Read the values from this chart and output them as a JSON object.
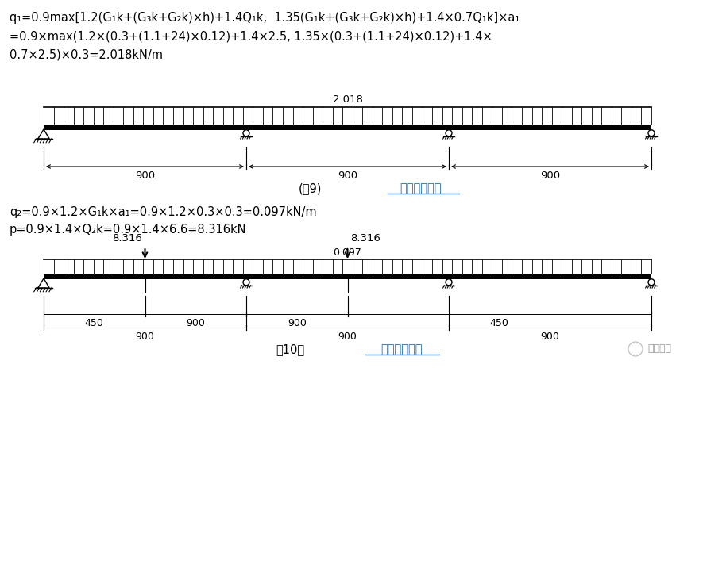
{
  "bg_color": "#ffffff",
  "text_color": "#000000",
  "fig9_load_label": "2.018",
  "fig10_load_label": "0.097",
  "fig10_point_load1": "8.316",
  "fig10_point_load2": "8.316",
  "fig9_caption": "(图9)",
  "fig9_caption2": "次梁计算简图",
  "fig10_caption": "图10）",
  "fig10_caption2": "次梁计算简图",
  "watermark": "豆丁施工",
  "line1": "q₁=0.9max[1.2(G₁k+(G₃k+G₂k)×h)+1.4Q₁k,  1.35(G₁k+(G₃k+G₂k)×h)+1.4×0.7Q₁k]×a₁",
  "line2": "=0.9×max(1.2×(0.3+(1.1+24)×0.12)+1.4×2.5, 1.35×(0.3+(1.1+24)×0.12)+1.4×",
  "line3": "0.7×2.5)×0.3=2.018kN/m",
  "line4": "q₂=0.9×1.2×G₁k×a₁=0.9×1.2×0.3×0.3=0.097kN/m",
  "line5": "p=0.9×1.4×Q₂k=0.9×1.4×6.6=8.316kN"
}
